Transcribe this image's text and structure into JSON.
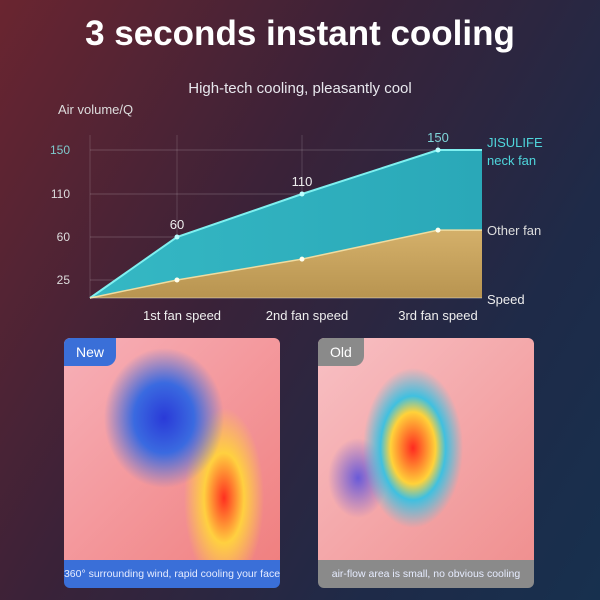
{
  "title": "3 seconds instant cooling",
  "subtitle": "High-tech cooling, pleasantly cool",
  "chart_data": {
    "type": "area",
    "ylabel": "Air volume/Q",
    "xlabel": "Speed",
    "categories": [
      "1st fan speed",
      "2nd fan speed",
      "3rd fan speed"
    ],
    "y_ticks": [
      "150",
      "110",
      "60",
      "25"
    ],
    "series": [
      {
        "name": "JISULIFE neck fan",
        "name_lines": [
          "JISULIFE",
          "neck fan"
        ],
        "values": [
          60,
          110,
          150
        ],
        "data_labels": [
          "60",
          "110",
          "150"
        ],
        "color": "#3fd0d4"
      },
      {
        "name": "Other fan",
        "values": [
          25,
          42,
          68
        ],
        "color": "#d8b46a"
      }
    ],
    "grid": true
  },
  "panels": [
    {
      "badge": "New",
      "caption": "360° surrounding wind, rapid cooling your face",
      "color": "#3a6fd8"
    },
    {
      "badge": "Old",
      "caption": "air-flow area is small, no obvious cooling",
      "color": "#8a8a8a"
    }
  ]
}
